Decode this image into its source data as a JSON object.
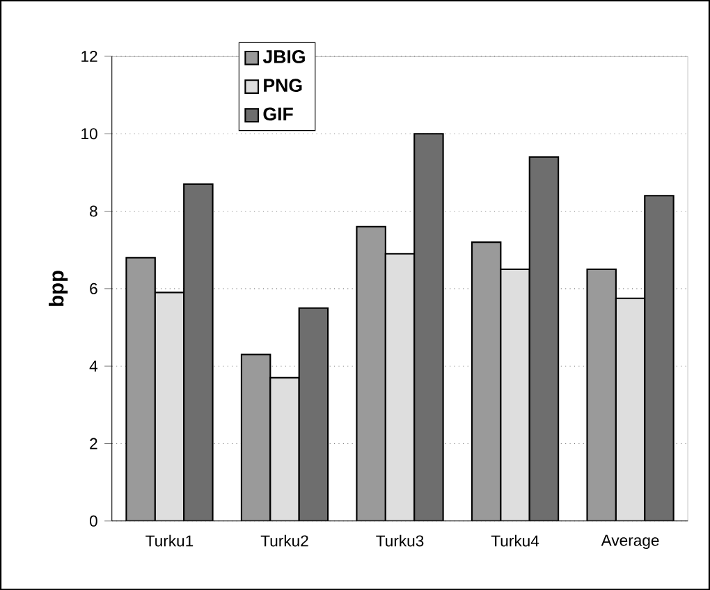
{
  "chart_data": {
    "type": "bar",
    "ylabel": "bpp",
    "categories": [
      "Turku1",
      "Turku2",
      "Turku3",
      "Turku4",
      "Average"
    ],
    "series": [
      {
        "name": "JBIG",
        "color": "#9a9a9a",
        "values": [
          6.8,
          4.3,
          7.6,
          7.2,
          6.5
        ]
      },
      {
        "name": "PNG",
        "color": "#dedede",
        "values": [
          5.9,
          3.7,
          6.9,
          6.5,
          5.75
        ]
      },
      {
        "name": "GIF",
        "color": "#6e6e6e",
        "values": [
          8.7,
          5.5,
          10.0,
          9.4,
          8.4
        ]
      }
    ],
    "ylim": [
      0,
      12
    ],
    "yticks": [
      0,
      2,
      4,
      6,
      8,
      10,
      12
    ],
    "grid": "y",
    "legend": "top"
  }
}
